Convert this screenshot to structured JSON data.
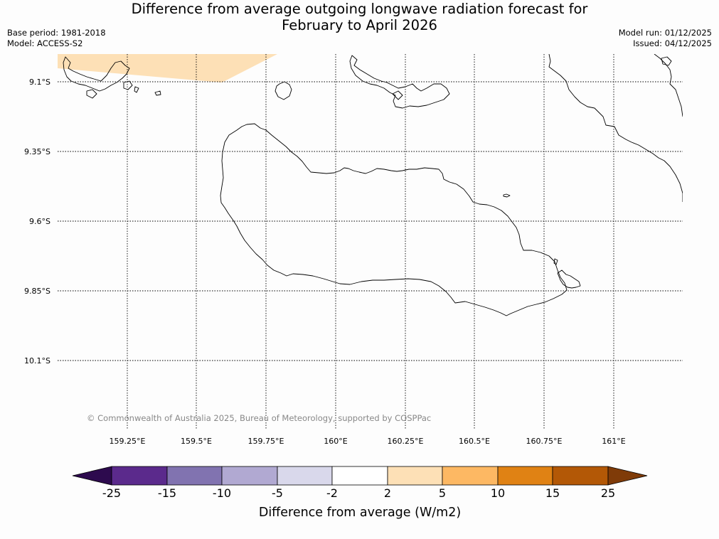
{
  "title": {
    "line1": "Difference from average outgoing longwave radiation forecast for",
    "line2": "February to April 2026"
  },
  "meta": {
    "base_period": "Base period: 1981-2018",
    "model": "Model: ACCESS-S2",
    "model_run": "Model run: 01/12/2025",
    "issued": "Issued: 04/12/2025"
  },
  "map": {
    "lat_labels": [
      "9.1°S",
      "9.35°S",
      "9.6°S",
      "9.85°S",
      "10.1°S"
    ],
    "lon_labels": [
      "159.25°E",
      "159.5°E",
      "159.75°E",
      "160°E",
      "160.25°E",
      "160.5°E",
      "160.75°E",
      "161°E"
    ],
    "anomaly_fill_color": "#fde0b6",
    "copyright": "© Commonwealth of Australia 2025, Bureau of Meteorology, supported by COSPPac"
  },
  "legend": {
    "label": "Difference from average (W/m2)",
    "ticks": [
      "-25",
      "-15",
      "-10",
      "-5",
      "-2",
      "2",
      "5",
      "10",
      "15",
      "25"
    ],
    "colors": [
      "#2d0a4e",
      "#5b2a8c",
      "#8173b0",
      "#b1a9d2",
      "#d9d8eb",
      "#ffffff",
      "#fde0b6",
      "#fdb863",
      "#e08214",
      "#b35806",
      "#7f3b08"
    ]
  }
}
